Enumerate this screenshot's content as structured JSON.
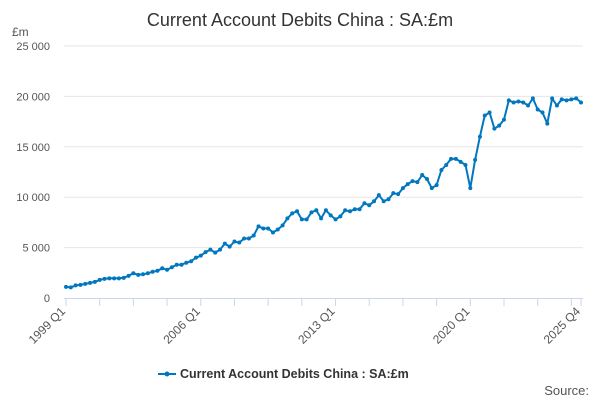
{
  "chart_data": {
    "type": "line",
    "title": "Current Account Debits China : SA:£m",
    "ylabel": "£m",
    "xlabel": "",
    "ylim": [
      0,
      25000
    ],
    "yticks": [
      0,
      5000,
      10000,
      15000,
      20000,
      25000
    ],
    "ytick_labels": [
      "0",
      "5 000",
      "10 000",
      "15 000",
      "20 000",
      "25 000"
    ],
    "x_start": "1999 Q1",
    "x_end": "2025 Q4",
    "xtick_labels": [
      {
        "label": "1999 Q1",
        "index": 0
      },
      {
        "label": "2006 Q1",
        "index": 28
      },
      {
        "label": "2013 Q1",
        "index": 56
      },
      {
        "label": "2020 Q1",
        "index": 84
      },
      {
        "label": "2025 Q4",
        "index": 107
      }
    ],
    "grid": true,
    "legend_position": "bottom",
    "series": [
      {
        "name": "Current Account Debits China : SA:£m",
        "color": "#0077bf",
        "values": [
          1100,
          1050,
          1250,
          1300,
          1400,
          1500,
          1600,
          1800,
          1900,
          1950,
          1950,
          1950,
          2000,
          2200,
          2450,
          2300,
          2350,
          2450,
          2600,
          2700,
          2950,
          2800,
          3050,
          3300,
          3300,
          3500,
          3650,
          4000,
          4200,
          4550,
          4800,
          4500,
          4800,
          5400,
          5100,
          5600,
          5500,
          5900,
          5900,
          6200,
          7100,
          6900,
          6900,
          6500,
          6800,
          7200,
          7900,
          8400,
          8600,
          7800,
          7800,
          8500,
          8700,
          7900,
          8700,
          8200,
          7800,
          8100,
          8700,
          8600,
          8800,
          8800,
          9400,
          9200,
          9600,
          10200,
          9600,
          9800,
          10400,
          10300,
          10900,
          11300,
          11600,
          11500,
          12200,
          11800,
          10900,
          11200,
          12700,
          13200,
          13800,
          13800,
          13500,
          13200,
          10900,
          13700,
          16000,
          18100,
          18400,
          16800,
          17100,
          17700,
          19600,
          19400,
          19500,
          19400,
          19100,
          19800,
          18700,
          18400,
          17300,
          19800,
          19100,
          19700,
          19600,
          19700,
          19800,
          19400
        ]
      }
    ]
  },
  "footer": {
    "source_label": "Source:"
  }
}
